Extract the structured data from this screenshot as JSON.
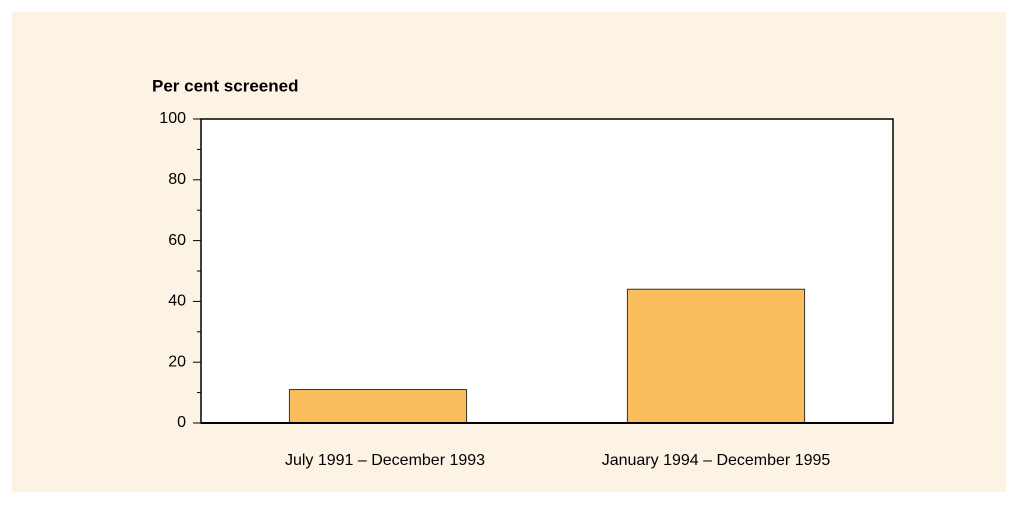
{
  "chart_data": {
    "type": "bar",
    "title": "Per cent screened",
    "categories": [
      "July 1991 – December 1993",
      "January 1994 – December 1995"
    ],
    "values": [
      11,
      44
    ],
    "color": "#fbbe5c",
    "ylim": [
      0,
      100
    ],
    "yticks": [
      0,
      20,
      40,
      60,
      80,
      100
    ],
    "yminorticks": [
      10,
      30,
      50,
      70,
      90
    ],
    "grid": false
  }
}
